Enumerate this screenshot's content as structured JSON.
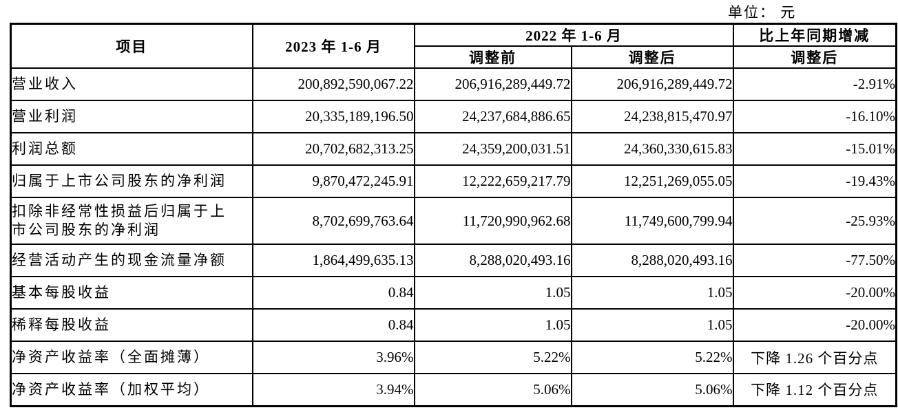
{
  "unit_label": "单位： 元",
  "table": {
    "header": {
      "item": "项目",
      "col_2023": "2023 年 1-6 月",
      "col_2022": "2022 年 1-6 月",
      "sub_before": "调整前",
      "sub_after": "调整后",
      "col_change": "比上年同期增减",
      "sub_change": "调整后"
    },
    "rows": [
      {
        "item": "营业收入",
        "v2023": "200,892,590,067.22",
        "v2022_before": "206,916,289,449.72",
        "v2022_after": "206,916,289,449.72",
        "change": "-2.91%"
      },
      {
        "item": "营业利润",
        "v2023": "20,335,189,196.50",
        "v2022_before": "24,237,684,886.65",
        "v2022_after": "24,238,815,470.97",
        "change": "-16.10%"
      },
      {
        "item": "利润总额",
        "v2023": "20,702,682,313.25",
        "v2022_before": "24,359,200,031.51",
        "v2022_after": "24,360,330,615.83",
        "change": "-15.01%"
      },
      {
        "item": "归属于上市公司股东的净利润",
        "v2023": "9,870,472,245.91",
        "v2022_before": "12,222,659,217.79",
        "v2022_after": "12,251,269,055.05",
        "change": "-19.43%"
      },
      {
        "item": "扣除非经常性损益后归属于上\n市公司股东的净利润",
        "v2023": "8,702,699,763.64",
        "v2022_before": "11,720,990,962.68",
        "v2022_after": "11,749,600,799.94",
        "change": "-25.93%"
      },
      {
        "item": "经营活动产生的现金流量净额",
        "v2023": "1,864,499,635.13",
        "v2022_before": "8,288,020,493.16",
        "v2022_after": "8,288,020,493.16",
        "change": "-77.50%"
      },
      {
        "item": "基本每股收益",
        "v2023": "0.84",
        "v2022_before": "1.05",
        "v2022_after": "1.05",
        "change": "-20.00%"
      },
      {
        "item": "稀释每股收益",
        "v2023": "0.84",
        "v2022_before": "1.05",
        "v2022_after": "1.05",
        "change": "-20.00%"
      },
      {
        "item": "净资产收益率（全面摊薄）",
        "v2023": "3.96%",
        "v2022_before": "5.22%",
        "v2022_after": "5.22%",
        "change": "下降 1.26 个百分点"
      },
      {
        "item": "净资产收益率（加权平均）",
        "v2023": "3.94%",
        "v2022_before": "5.06%",
        "v2022_after": "5.06%",
        "change": "下降 1.12 个百分点"
      }
    ]
  }
}
